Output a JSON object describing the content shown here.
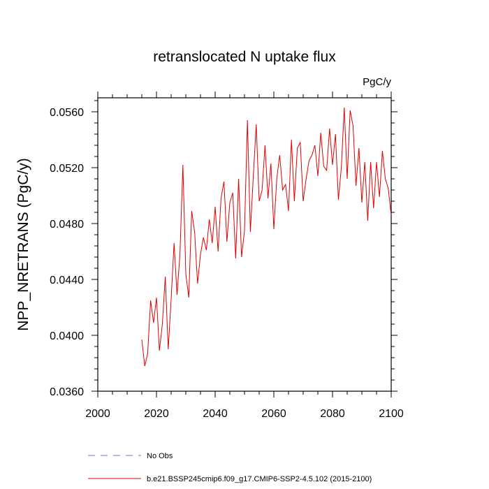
{
  "chart_data": {
    "type": "line",
    "title": "retranslocated N uptake flux",
    "units": "PgC/y",
    "xlabel": "",
    "ylabel": "NPP_NRETRANS  (PgC/y)",
    "xlim": [
      2000,
      2100
    ],
    "ylim": [
      0.036,
      0.057
    ],
    "xticks": [
      2000,
      2020,
      2040,
      2060,
      2080,
      2100
    ],
    "xtick_labels": [
      "2000",
      "2020",
      "2040",
      "2060",
      "2080",
      "2100"
    ],
    "yticks": [
      0.036,
      0.04,
      0.044,
      0.048,
      0.052,
      0.056
    ],
    "ytick_labels": [
      "0.0360",
      "0.0400",
      "0.0440",
      "0.0480",
      "0.0520",
      "0.0560"
    ],
    "grid": false,
    "legend_position": "bottom",
    "series": [
      {
        "name": "No Obs",
        "color": "#6f6fe0",
        "dash": "dashed",
        "x": [],
        "y": []
      },
      {
        "name": "b.e21.BSSP245cmip6.f09_g17.CMIP6-SSP2-4.5.102 (2015-2100)",
        "color": "#e00000",
        "dash": "solid",
        "x": [
          2015,
          2016,
          2017,
          2018,
          2019,
          2020,
          2021,
          2022,
          2023,
          2024,
          2025,
          2026,
          2027,
          2028,
          2029,
          2030,
          2031,
          2032,
          2033,
          2034,
          2035,
          2036,
          2037,
          2038,
          2039,
          2040,
          2041,
          2042,
          2043,
          2044,
          2045,
          2046,
          2047,
          2048,
          2049,
          2050,
          2051,
          2052,
          2053,
          2054,
          2055,
          2056,
          2057,
          2058,
          2059,
          2060,
          2061,
          2062,
          2063,
          2064,
          2065,
          2066,
          2067,
          2068,
          2069,
          2070,
          2071,
          2072,
          2073,
          2074,
          2075,
          2076,
          2077,
          2078,
          2079,
          2080,
          2081,
          2082,
          2083,
          2084,
          2085,
          2086,
          2087,
          2088,
          2089,
          2090,
          2091,
          2092,
          2093,
          2094,
          2095,
          2096,
          2097,
          2098,
          2099,
          2100
        ],
        "y": [
          0.0397,
          0.0378,
          0.0387,
          0.0425,
          0.0409,
          0.0427,
          0.0389,
          0.0408,
          0.0442,
          0.039,
          0.0426,
          0.0466,
          0.0429,
          0.0458,
          0.0522,
          0.0444,
          0.0427,
          0.0489,
          0.0474,
          0.0437,
          0.0458,
          0.047,
          0.0461,
          0.0483,
          0.0466,
          0.0492,
          0.046,
          0.0498,
          0.051,
          0.0467,
          0.0495,
          0.0502,
          0.0455,
          0.0512,
          0.0456,
          0.0475,
          0.0554,
          0.0474,
          0.0514,
          0.0551,
          0.0496,
          0.0504,
          0.0536,
          0.0498,
          0.0523,
          0.0476,
          0.0512,
          0.0529,
          0.0504,
          0.0508,
          0.0489,
          0.054,
          0.0496,
          0.0534,
          0.0538,
          0.0496,
          0.0512,
          0.0525,
          0.0529,
          0.0536,
          0.0514,
          0.0545,
          0.0521,
          0.0518,
          0.0548,
          0.0522,
          0.0544,
          0.0497,
          0.052,
          0.0563,
          0.0512,
          0.0561,
          0.055,
          0.0507,
          0.0534,
          0.0495,
          0.0524,
          0.0482,
          0.0524,
          0.0491,
          0.0524,
          0.0499,
          0.0532,
          0.0512,
          0.0505,
          0.0486
        ]
      }
    ]
  }
}
